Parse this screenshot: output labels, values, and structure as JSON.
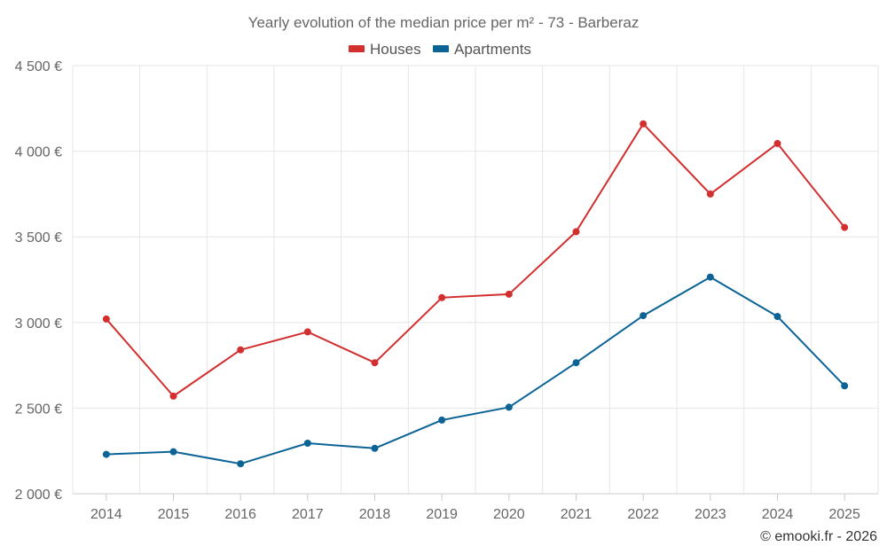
{
  "chart_data": {
    "type": "line",
    "title": "Yearly evolution of the median price per m² - 73 - Barberaz",
    "categories": [
      "2014",
      "2015",
      "2016",
      "2017",
      "2018",
      "2019",
      "2020",
      "2021",
      "2022",
      "2023",
      "2024",
      "2025"
    ],
    "series": [
      {
        "name": "Houses",
        "color": "#d32f2f",
        "values": [
          3020,
          2570,
          2840,
          2945,
          2765,
          3145,
          3165,
          3530,
          4160,
          3750,
          4045,
          3555
        ]
      },
      {
        "name": "Apartments",
        "color": "#0b6396",
        "values": [
          2230,
          2245,
          2175,
          2295,
          2265,
          2430,
          2505,
          2765,
          3040,
          3265,
          3035,
          2630
        ]
      }
    ],
    "ylim": [
      2000,
      4500
    ],
    "yticks": [
      2000,
      2500,
      3000,
      3500,
      4000,
      4500
    ],
    "ytick_labels": [
      "2 000 €",
      "2 500 €",
      "3 000 €",
      "3 500 €",
      "4 000 €",
      "4 500 €"
    ],
    "xlabel": "",
    "ylabel": "",
    "grid": true,
    "legend_position": "top-center"
  },
  "credit": "© emooki.fr - 2026"
}
